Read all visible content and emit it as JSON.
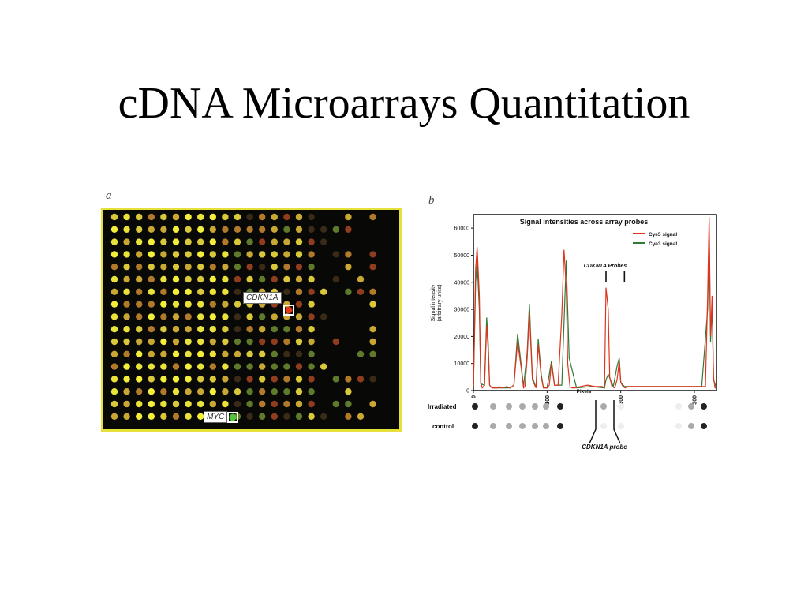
{
  "slide": {
    "title": "cDNA Microarrays Quantitation"
  },
  "panel_a": {
    "label": "a",
    "highlights": [
      {
        "gene": "CDKN1A",
        "color": "#e33a1c"
      },
      {
        "gene": "MYC",
        "color": "#53c43a"
      }
    ]
  },
  "panel_b": {
    "label": "b",
    "row_labels": [
      "Irradiated",
      "control"
    ],
    "probe_marker": "CDKN1A probe",
    "chart_data": {
      "type": "line",
      "title": "Signal intensities across array probes",
      "xlabel": "Pixels",
      "ylabel": "Signal intensity",
      "ylabel_sub": "(arbitrary units)",
      "xlim": [
        0,
        330
      ],
      "ylim": [
        0,
        65000
      ],
      "xticks": [
        "0",
        "100",
        "200",
        "300"
      ],
      "yticks": [
        "0",
        "10000",
        "20000",
        "30000",
        "40000",
        "50000",
        "60000"
      ],
      "annotation": {
        "text": "CDKN1A Probes",
        "x": [
          180,
          205
        ]
      },
      "legend_position": "top-right",
      "series": [
        {
          "name": "Cye5 signal",
          "color": "#e0331e",
          "x": [
            0,
            3,
            5,
            8,
            10,
            12,
            15,
            18,
            20,
            22,
            25,
            28,
            30,
            33,
            35,
            38,
            40,
            45,
            50,
            55,
            60,
            65,
            68,
            70,
            73,
            76,
            80,
            85,
            88,
            92,
            95,
            100,
            103,
            106,
            110,
            115,
            120,
            123,
            126,
            128,
            131,
            134,
            138,
            145,
            155,
            165,
            175,
            178,
            180,
            183,
            185,
            188,
            192,
            195,
            198,
            200,
            203,
            206,
            210,
            220,
            240,
            260,
            280,
            295,
            300,
            305,
            310,
            315,
            318,
            320,
            322,
            324,
            326,
            328,
            330
          ],
          "y": [
            1000,
            45000,
            53000,
            35000,
            3000,
            1000,
            2000,
            24000,
            15000,
            2000,
            1000,
            1000,
            1000,
            1000,
            1500,
            1000,
            1000,
            1500,
            1000,
            2000,
            18000,
            8000,
            1000,
            1500,
            12000,
            29000,
            4000,
            1000,
            17000,
            5000,
            1000,
            1000,
            2000,
            10000,
            2000,
            2000,
            28000,
            52000,
            38000,
            10000,
            1500,
            1000,
            1000,
            1500,
            2000,
            1500,
            1500,
            1000,
            38000,
            30000,
            5000,
            1500,
            1000,
            4000,
            11000,
            3000,
            1500,
            1000,
            1500,
            1500,
            1500,
            1500,
            1500,
            1500,
            1500,
            1500,
            1500,
            1500,
            35000,
            64000,
            20000,
            35000,
            5000,
            1000,
            1000
          ]
        },
        {
          "name": "Cye3 signal",
          "color": "#2e7a36",
          "x": [
            0,
            3,
            5,
            8,
            10,
            15,
            18,
            20,
            22,
            25,
            30,
            40,
            50,
            55,
            60,
            65,
            68,
            73,
            76,
            80,
            85,
            88,
            92,
            95,
            100,
            106,
            110,
            120,
            123,
            126,
            130,
            140,
            160,
            178,
            180,
            183,
            186,
            190,
            195,
            198,
            200,
            205,
            210,
            240,
            280,
            300,
            310,
            318,
            320,
            322,
            324,
            326,
            330
          ],
          "y": [
            1000,
            40000,
            48000,
            30000,
            2500,
            2000,
            27000,
            18000,
            2000,
            1000,
            1000,
            1000,
            1000,
            2000,
            21000,
            9000,
            1500,
            14000,
            32000,
            5000,
            1000,
            19000,
            6000,
            1000,
            1000,
            11000,
            2000,
            2000,
            25000,
            48000,
            12000,
            1000,
            1500,
            1000,
            4000,
            6000,
            4000,
            1500,
            9000,
            12000,
            3000,
            1500,
            1500,
            1500,
            1500,
            1500,
            1500,
            30000,
            58000,
            18000,
            31000,
            4000,
            1000
          ]
        }
      ]
    }
  }
}
